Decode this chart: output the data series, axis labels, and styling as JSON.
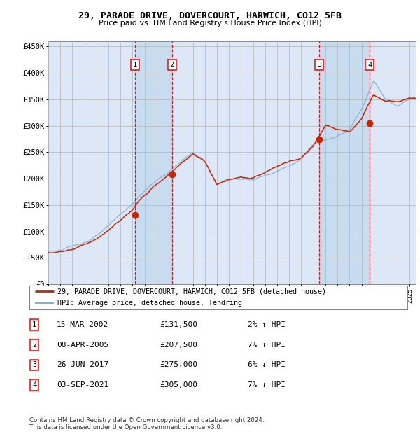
{
  "title1": "29, PARADE DRIVE, DOVERCOURT, HARWICH, CO12 5FB",
  "title2": "Price paid vs. HM Land Registry's House Price Index (HPI)",
  "background_color": "#ffffff",
  "plot_bg_color": "#dce8f8",
  "grid_color": "#bbbbbb",
  "hpi_line_color": "#7fb0d8",
  "price_line_color": "#cc2200",
  "sale_marker_color": "#cc2200",
  "dashed_line_color": "#cc0000",
  "shaded_region_color": "#c8dcf0",
  "transactions": [
    {
      "label": "1",
      "date": 2002.21,
      "price": 131500
    },
    {
      "label": "2",
      "date": 2005.27,
      "price": 207500
    },
    {
      "label": "3",
      "date": 2017.49,
      "price": 275000
    },
    {
      "label": "4",
      "date": 2021.67,
      "price": 305000
    }
  ],
  "table_rows": [
    {
      "num": "1",
      "date": "15-MAR-2002",
      "price": "£131,500",
      "pct": "2% ↑ HPI"
    },
    {
      "num": "2",
      "date": "08-APR-2005",
      "price": "£207,500",
      "pct": "7% ↑ HPI"
    },
    {
      "num": "3",
      "date": "26-JUN-2017",
      "price": "£275,000",
      "pct": "6% ↓ HPI"
    },
    {
      "num": "4",
      "date": "03-SEP-2021",
      "price": "£305,000",
      "pct": "7% ↓ HPI"
    }
  ],
  "legend_price_label": "29, PARADE DRIVE, DOVERCOURT, HARWICH, CO12 5FB (detached house)",
  "legend_hpi_label": "HPI: Average price, detached house, Tendring",
  "footer": "Contains HM Land Registry data © Crown copyright and database right 2024.\nThis data is licensed under the Open Government Licence v3.0.",
  "ylim": [
    0,
    460000
  ],
  "xlim_start": 1995.0,
  "xlim_end": 2025.5,
  "hpi_anchors_x": [
    1995,
    1996,
    1997,
    1998,
    1999,
    2000,
    2001,
    2002,
    2003,
    2004,
    2005,
    2006,
    2007,
    2008,
    2009,
    2010,
    2011,
    2012,
    2013,
    2014,
    2015,
    2016,
    2017,
    2018,
    2019,
    2020,
    2021,
    2022,
    2023,
    2024,
    2025
  ],
  "hpi_anchors_y": [
    62000,
    65000,
    70000,
    80000,
    92000,
    108000,
    130000,
    150000,
    175000,
    195000,
    210000,
    230000,
    245000,
    228000,
    185000,
    195000,
    198000,
    195000,
    205000,
    215000,
    225000,
    238000,
    265000,
    278000,
    285000,
    295000,
    335000,
    390000,
    355000,
    345000,
    360000
  ],
  "price_anchors_x": [
    1995,
    1996,
    1997,
    1998,
    1999,
    2000,
    2001,
    2002,
    2003,
    2004,
    2005,
    2006,
    2007,
    2008,
    2009,
    2010,
    2011,
    2012,
    2013,
    2014,
    2015,
    2016,
    2017,
    2018,
    2019,
    2020,
    2021,
    2022,
    2023,
    2024,
    2025
  ],
  "price_anchors_y": [
    60000,
    63000,
    68000,
    78000,
    90000,
    105000,
    125000,
    143000,
    170000,
    190000,
    207500,
    228000,
    248000,
    232000,
    190000,
    198000,
    200000,
    197000,
    207000,
    217000,
    227000,
    235000,
    258000,
    298000,
    288000,
    283000,
    307000,
    352000,
    338000,
    337000,
    342000
  ]
}
